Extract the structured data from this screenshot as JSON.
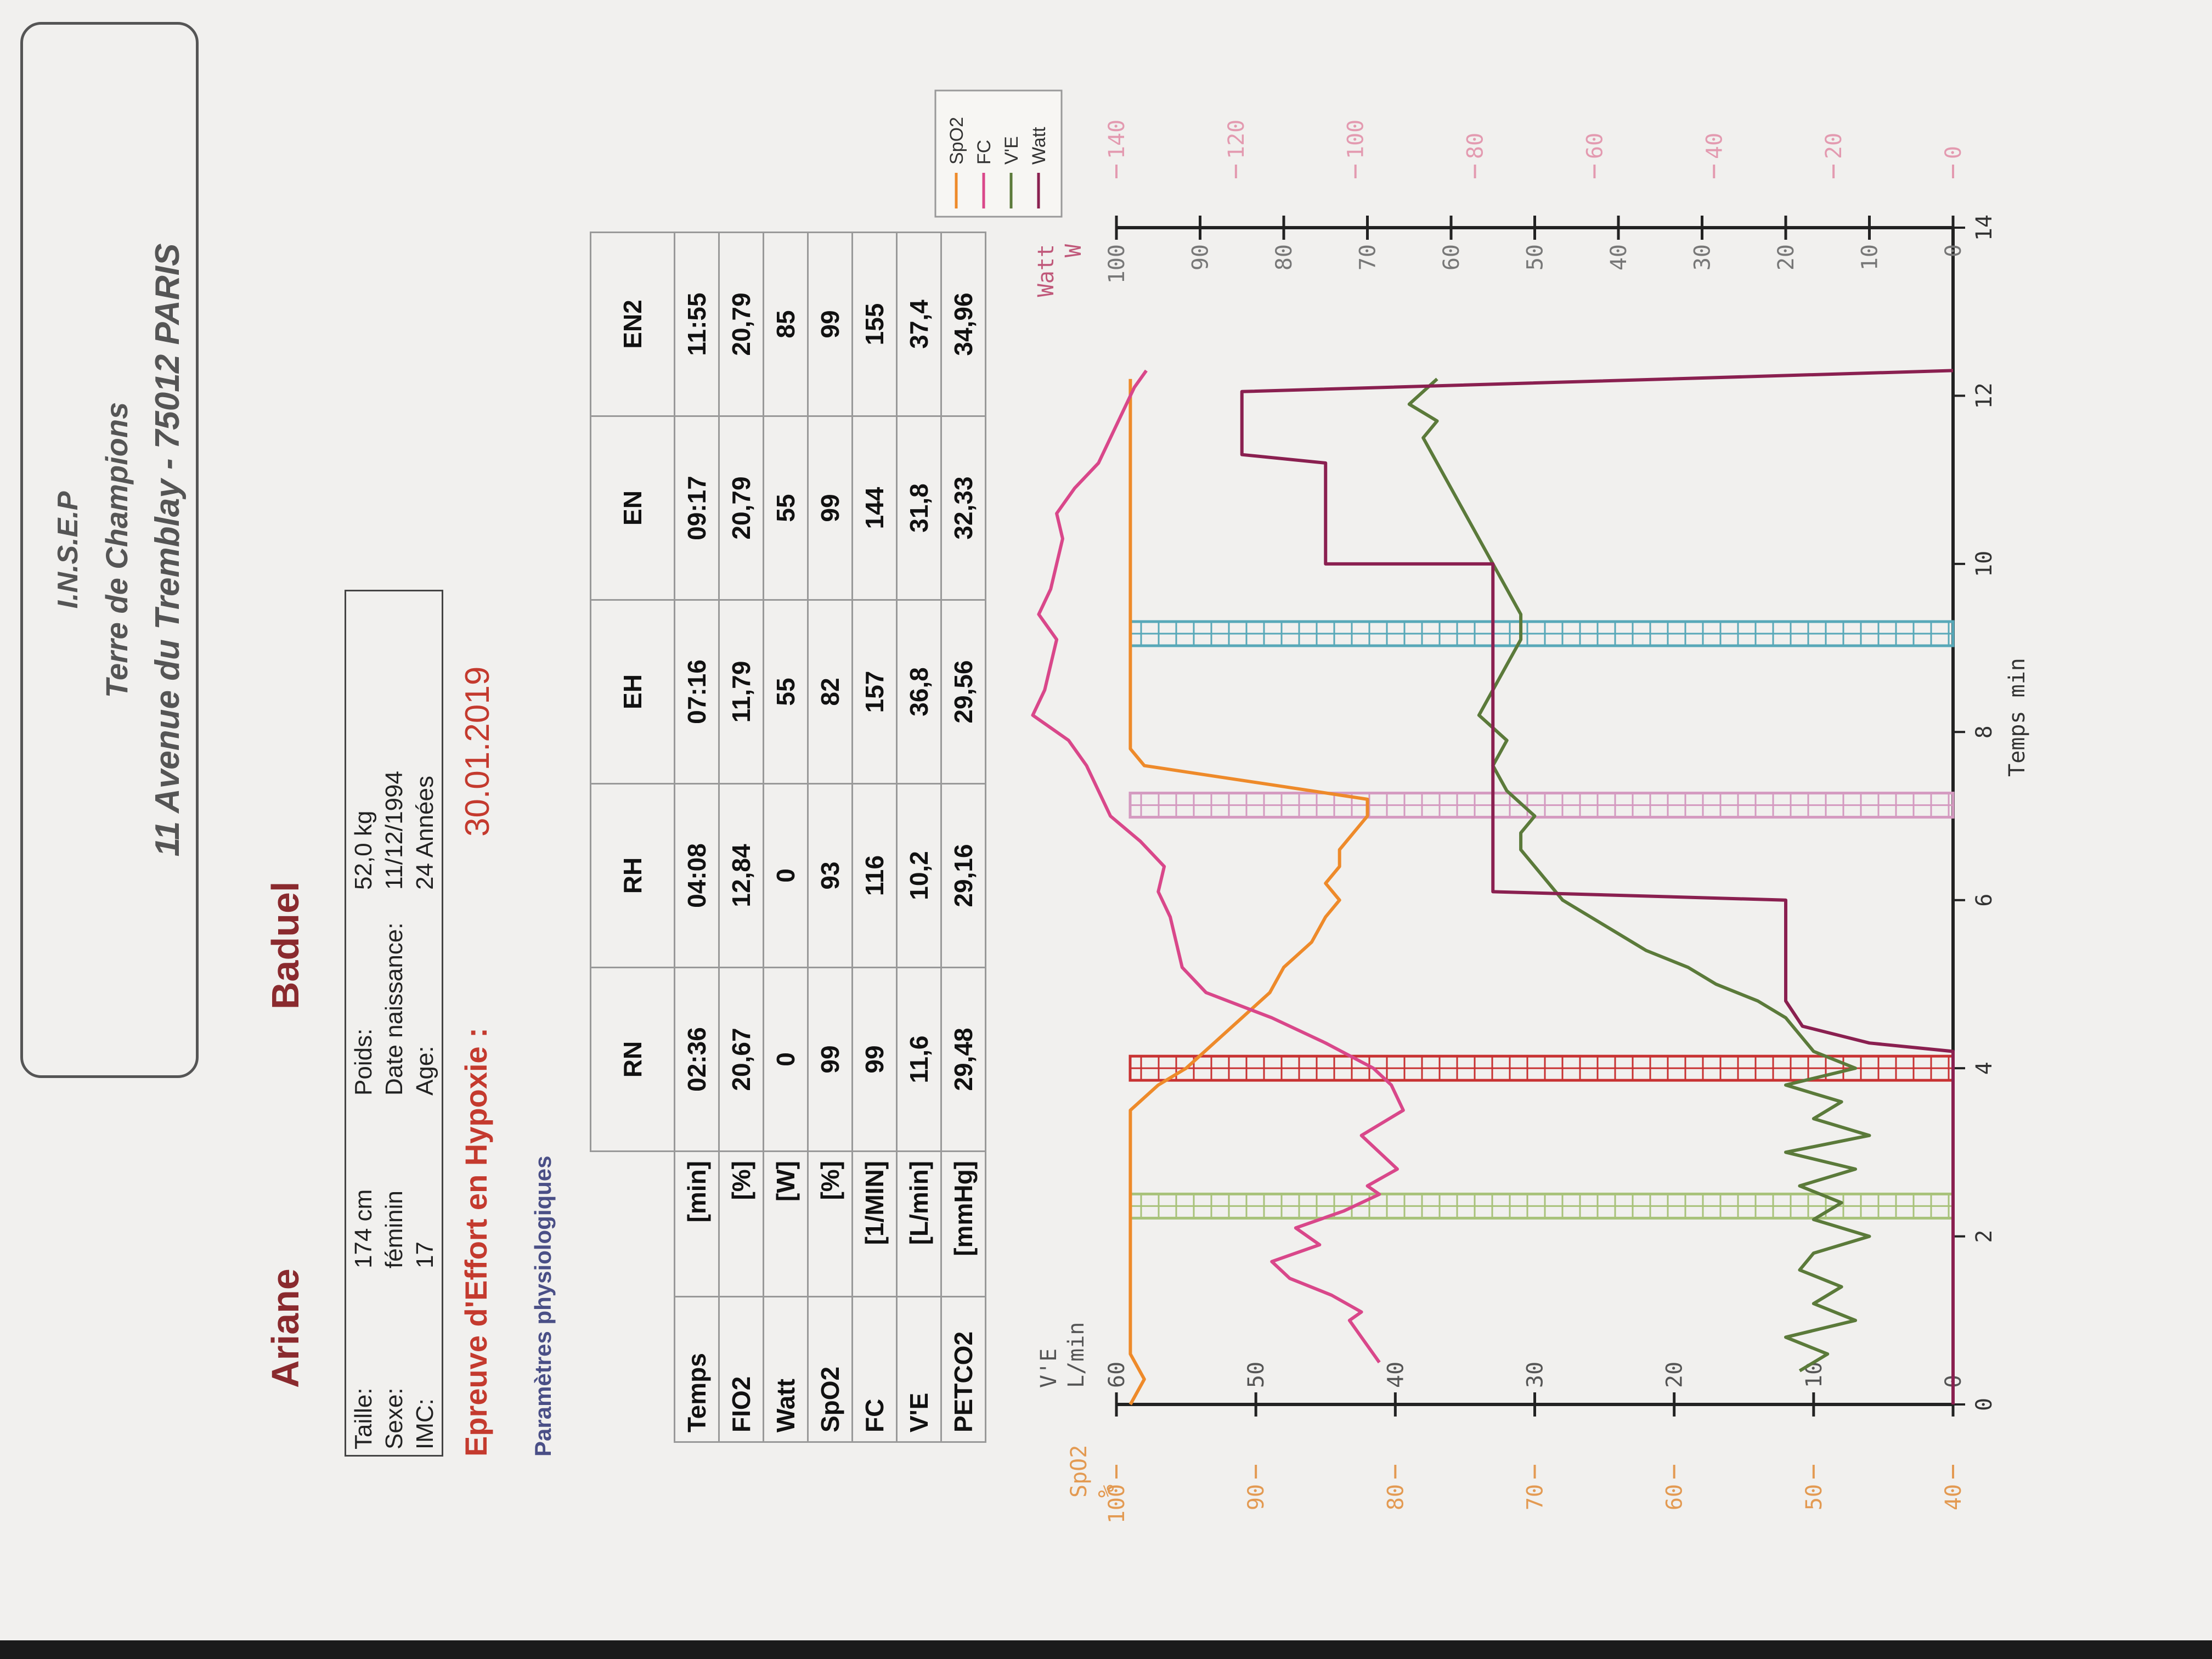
{
  "header": {
    "line1": "I.N.S.E.P",
    "line2": "Terre de Champions",
    "line3": "11 Avenue du Tremblay - 75012 PARIS"
  },
  "patient": {
    "first_name": "Ariane",
    "last_name": "Baduel"
  },
  "info": {
    "col1_labels": [
      "Taille:",
      "Sexe:",
      "IMC:"
    ],
    "col1_values": [
      "174 cm",
      "féminin",
      "17"
    ],
    "col2_labels": [
      "Poids:",
      "Date naissance:",
      "Age:"
    ],
    "col2_values": [
      "52,0 kg",
      "11/12/1994",
      "24 Années"
    ]
  },
  "test": {
    "title": "Epreuve d'Effort en Hypoxie :",
    "date": "30.01.2019",
    "section": "Paramètres physiologiques"
  },
  "table": {
    "columns": [
      "RN",
      "RH",
      "EH",
      "EN",
      "EN2"
    ],
    "rows": [
      {
        "label": "Temps",
        "unit": "[min]",
        "values": [
          "02:36",
          "04:08",
          "07:16",
          "09:17",
          "11:55"
        ]
      },
      {
        "label": "FIO2",
        "unit": "[%]",
        "values": [
          "20,67",
          "12,84",
          "11,79",
          "20,79",
          "20,79"
        ]
      },
      {
        "label": "Watt",
        "unit": "[W]",
        "values": [
          "0",
          "0",
          "55",
          "55",
          "85"
        ]
      },
      {
        "label": "SpO2",
        "unit": "[%]",
        "values": [
          "99",
          "93",
          "82",
          "99",
          "99"
        ]
      },
      {
        "label": "FC",
        "unit": "[1/MIN]",
        "values": [
          "99",
          "116",
          "157",
          "144",
          "155"
        ]
      },
      {
        "label": "V'E",
        "unit": "[L/min]",
        "values": [
          "11,6",
          "10,2",
          "36,8",
          "31,8",
          "37,4"
        ]
      },
      {
        "label": "PETCO2",
        "unit": "[mmHg]",
        "values": [
          "29,48",
          "29,16",
          "29,56",
          "32,33",
          "34,96"
        ]
      }
    ]
  },
  "chart_data": {
    "type": "line",
    "xlabel": "Temps  min",
    "xlim": [
      0,
      14
    ],
    "x_ticks": [
      "0",
      "2",
      "4",
      "6",
      "8",
      "10",
      "12",
      "14"
    ],
    "axes": {
      "spo2": {
        "label": "SpO2",
        "unit": "%",
        "range": [
          40,
          100
        ],
        "ticks": [
          "40",
          "50",
          "60",
          "70",
          "80",
          "90",
          "100"
        ],
        "color": "#e39a52"
      },
      "ve": {
        "label": "V'E",
        "unit": "L/min",
        "range": [
          0,
          60
        ],
        "ticks": [
          "0",
          "10",
          "20",
          "30",
          "40",
          "50",
          "60"
        ],
        "color": "#555555"
      },
      "watt": {
        "label": "Watt",
        "unit": "W",
        "range": [
          0,
          100
        ],
        "ticks": [
          "0",
          "10",
          "20",
          "30",
          "40",
          "50",
          "60",
          "70",
          "80",
          "90",
          "100"
        ],
        "color": "#c0587a"
      },
      "fc": {
        "range": [
          0,
          140
        ],
        "ticks": [
          "0",
          "20",
          "40",
          "60",
          "80",
          "100",
          "120",
          "140"
        ],
        "color": "#e39ab0"
      }
    },
    "legend": [
      "SpO2",
      "FC",
      "V'E",
      "Watt"
    ],
    "series": [
      {
        "name": "SpO2",
        "axis": "spo2",
        "color": "#ee8a2a",
        "x": [
          0,
          0.3,
          0.6,
          0.9,
          1.2,
          1.6,
          2.0,
          2.4,
          2.8,
          3.2,
          3.5,
          3.8,
          4.0,
          4.3,
          4.6,
          4.9,
          5.2,
          5.5,
          5.8,
          6.0,
          6.2,
          6.4,
          6.6,
          6.8,
          7.0,
          7.2,
          7.4,
          7.6,
          7.8,
          8.0,
          8.5,
          9.0,
          9.5,
          10.0,
          10.5,
          11.0,
          11.5,
          12.0,
          12.2
        ],
        "y": [
          99,
          98,
          99,
          99,
          99,
          99,
          99,
          99,
          99,
          99,
          99,
          97,
          95,
          93,
          91,
          89,
          88,
          86,
          85,
          84,
          85,
          84,
          84,
          83,
          82,
          82,
          90,
          98,
          99,
          99,
          99,
          99,
          99,
          99,
          99,
          99,
          99,
          99,
          99
        ]
      },
      {
        "name": "FC",
        "axis": "fc",
        "color": "#d9478a",
        "x": [
          0.5,
          0.8,
          1.0,
          1.1,
          1.3,
          1.5,
          1.7,
          1.9,
          2.1,
          2.3,
          2.5,
          2.6,
          2.8,
          3.0,
          3.2,
          3.5,
          3.8,
          4.0,
          4.3,
          4.6,
          4.9,
          5.2,
          5.5,
          5.8,
          6.1,
          6.4,
          6.7,
          7.0,
          7.3,
          7.6,
          7.9,
          8.2,
          8.5,
          8.8,
          9.1,
          9.4,
          9.7,
          10.0,
          10.3,
          10.6,
          10.9,
          11.2,
          11.5,
          11.8,
          12.1,
          12.3
        ],
        "y": [
          96,
          99,
          101,
          99,
          104,
          111,
          114,
          106,
          110,
          102,
          96,
          98,
          93,
          96,
          99,
          92,
          94,
          97,
          105,
          114,
          125,
          129,
          130,
          131,
          133,
          132,
          136,
          141,
          143,
          145,
          148,
          154,
          152,
          151,
          150,
          153,
          151,
          150,
          149,
          150,
          147,
          143,
          141,
          139,
          137,
          135
        ]
      },
      {
        "name": "V'E",
        "axis": "ve",
        "color": "#5b7a3a",
        "x": [
          0.4,
          0.6,
          0.8,
          1.0,
          1.2,
          1.4,
          1.6,
          1.8,
          2.0,
          2.2,
          2.4,
          2.6,
          2.8,
          3.0,
          3.2,
          3.4,
          3.6,
          3.8,
          4.0,
          4.2,
          4.4,
          4.6,
          4.8,
          5.0,
          5.2,
          5.4,
          5.6,
          5.8,
          6.0,
          6.2,
          6.4,
          6.6,
          6.8,
          7.0,
          7.3,
          7.6,
          7.9,
          8.2,
          8.5,
          8.8,
          9.1,
          9.4,
          9.7,
          10.0,
          10.3,
          10.6,
          10.9,
          11.2,
          11.5,
          11.7,
          11.9,
          12.2
        ],
        "y": [
          11,
          9,
          12,
          7,
          10,
          8,
          11,
          10,
          6,
          10,
          8,
          11,
          7,
          12,
          6,
          10,
          8,
          12,
          7,
          10,
          11,
          12,
          14,
          17,
          19,
          22,
          24,
          26,
          28,
          29,
          30,
          31,
          31,
          30,
          32,
          33,
          32,
          34,
          33,
          32,
          31,
          31,
          32,
          33,
          34,
          35,
          36,
          37,
          38,
          37,
          39,
          37
        ]
      },
      {
        "name": "Watt",
        "axis": "watt",
        "color": "#8a2050",
        "x": [
          0,
          4.2,
          4.3,
          4.5,
          4.8,
          6.0,
          6.1,
          9.0,
          9.1,
          10.0,
          10.0,
          10.5,
          10.6,
          11.2,
          11.3,
          12.0,
          12.05,
          12.3
        ],
        "y": [
          0,
          0,
          10,
          18,
          20,
          20,
          55,
          55,
          55,
          55,
          75,
          75,
          75,
          75,
          85,
          85,
          85,
          0
        ]
      }
    ],
    "markers": [
      {
        "x": 2.36,
        "color": "#a8c27a"
      },
      {
        "x": 4.0,
        "color": "#c83232"
      },
      {
        "x": 7.13,
        "color": "#d49ac0"
      },
      {
        "x": 9.17,
        "color": "#58a8b8"
      }
    ]
  }
}
